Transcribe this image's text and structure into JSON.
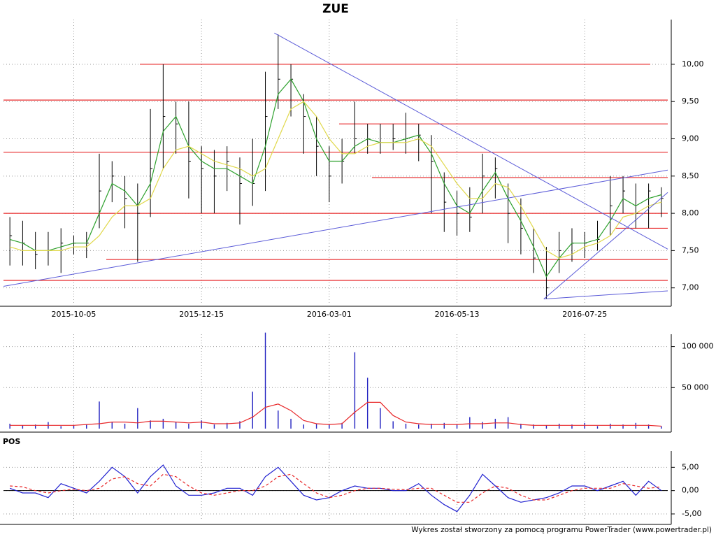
{
  "chart_data": [
    {
      "type": "ohlc",
      "title": "ZUE",
      "categories": [
        null,
        null,
        null,
        null,
        null,
        "2015-10-05",
        null,
        null,
        null,
        null,
        null,
        null,
        null,
        null,
        null,
        "2015-12-15",
        null,
        null,
        null,
        null,
        null,
        null,
        null,
        null,
        null,
        "2016-03-01",
        null,
        null,
        null,
        null,
        null,
        null,
        null,
        null,
        null,
        "2016-05-13",
        null,
        null,
        null,
        null,
        null,
        null,
        null,
        null,
        null,
        "2016-07-25",
        null,
        null,
        null,
        null,
        null,
        null
      ],
      "high": [
        7.95,
        7.9,
        7.75,
        7.75,
        7.8,
        7.7,
        7.75,
        8.8,
        8.7,
        8.5,
        8.4,
        9.4,
        10.0,
        9.5,
        9.5,
        8.9,
        8.85,
        8.9,
        8.75,
        9.0,
        9.9,
        10.4,
        10.0,
        9.6,
        9.3,
        8.9,
        9.0,
        9.5,
        9.2,
        9.2,
        9.2,
        9.35,
        9.2,
        9.05,
        8.55,
        8.3,
        8.35,
        8.8,
        8.75,
        8.4,
        8.2,
        7.8,
        7.55,
        7.75,
        7.8,
        7.75,
        7.9,
        8.5,
        8.5,
        8.4,
        8.4,
        8.35
      ],
      "low": [
        7.3,
        7.3,
        7.25,
        7.3,
        7.2,
        7.45,
        7.4,
        7.8,
        8.15,
        7.8,
        7.35,
        7.95,
        8.6,
        8.8,
        8.2,
        8.0,
        8.0,
        8.3,
        7.85,
        8.1,
        8.3,
        9.4,
        9.3,
        8.8,
        8.5,
        8.15,
        8.4,
        8.8,
        8.8,
        8.8,
        8.85,
        8.8,
        8.7,
        8.0,
        7.75,
        7.7,
        7.75,
        8.0,
        8.2,
        7.6,
        7.45,
        7.2,
        6.85,
        7.2,
        7.35,
        7.4,
        7.5,
        7.7,
        8.0,
        7.8,
        7.8,
        7.95
      ],
      "close": [
        7.7,
        7.6,
        7.45,
        7.5,
        7.6,
        7.6,
        7.6,
        8.3,
        8.5,
        8.2,
        8.0,
        8.6,
        9.3,
        9.2,
        8.7,
        8.6,
        8.5,
        8.7,
        8.4,
        8.4,
        9.3,
        9.8,
        9.8,
        9.3,
        8.9,
        8.5,
        8.7,
        9.0,
        9.0,
        8.95,
        9.0,
        9.0,
        9.05,
        8.7,
        8.15,
        8.0,
        7.95,
        8.5,
        8.6,
        8.0,
        7.8,
        7.4,
        7.0,
        7.5,
        7.6,
        7.6,
        7.65,
        8.1,
        8.3,
        8.0,
        8.3,
        8.2
      ],
      "color": "#000000",
      "lines": [
        {
          "color": "#2ca02c",
          "values": [
            7.65,
            7.6,
            7.5,
            7.5,
            7.55,
            7.6,
            7.6,
            8.0,
            8.4,
            8.3,
            8.1,
            8.4,
            9.1,
            9.3,
            8.9,
            8.7,
            8.6,
            8.6,
            8.5,
            8.4,
            8.9,
            9.6,
            9.8,
            9.5,
            9.0,
            8.7,
            8.7,
            8.9,
            9.0,
            8.95,
            8.95,
            9.0,
            9.05,
            8.8,
            8.4,
            8.1,
            8.0,
            8.3,
            8.55,
            8.2,
            7.9,
            7.55,
            7.15,
            7.4,
            7.6,
            7.6,
            7.65,
            7.9,
            8.2,
            8.1,
            8.2,
            8.25
          ]
        },
        {
          "color": "#e0d84a",
          "values": [
            7.55,
            7.5,
            7.5,
            7.5,
            7.5,
            7.55,
            7.55,
            7.7,
            7.95,
            8.1,
            8.1,
            8.2,
            8.6,
            8.85,
            8.9,
            8.8,
            8.7,
            8.65,
            8.6,
            8.5,
            8.6,
            9.0,
            9.4,
            9.5,
            9.3,
            9.0,
            8.8,
            8.8,
            8.9,
            8.95,
            8.95,
            8.95,
            9.0,
            8.9,
            8.65,
            8.4,
            8.2,
            8.2,
            8.4,
            8.35,
            8.1,
            7.8,
            7.5,
            7.4,
            7.45,
            7.55,
            7.6,
            7.7,
            7.95,
            8.0,
            8.1,
            8.15
          ]
        }
      ],
      "hlines": {
        "color": "#e8282a",
        "values": [
          10.0,
          9.52,
          9.2,
          8.82,
          8.48,
          8.0,
          7.8,
          7.38,
          7.1
        ]
      },
      "trendlines": {
        "color": "#5b5bd8",
        "lines": [
          {
            "x": [
              20.7,
              51.5
            ],
            "y": [
              10.42,
              7.52
            ]
          },
          {
            "x": [
              -0.5,
              51.5
            ],
            "y": [
              7.02,
              8.58
            ]
          },
          {
            "x": [
              41.8,
              51.5
            ],
            "y": [
              6.85,
              8.28
            ]
          },
          {
            "x": [
              41.8,
              51.5
            ],
            "y": [
              6.85,
              6.96
            ]
          }
        ]
      },
      "ylim": [
        6.8,
        10.6
      ],
      "yticks": [
        {
          "value": 7,
          "label": "7,00"
        },
        {
          "value": 7.5,
          "label": "7,50"
        },
        {
          "value": 8,
          "label": "8,00"
        },
        {
          "value": 8.5,
          "label": "8,50"
        },
        {
          "value": 9,
          "label": "9,00"
        },
        {
          "value": 9.5,
          "label": "9,50"
        },
        {
          "value": 10,
          "label": "10,00"
        }
      ],
      "grid": true
    },
    {
      "type": "bar",
      "values": [
        6000,
        4000,
        5000,
        8000,
        3000,
        4000,
        5000,
        33000,
        8000,
        6000,
        25000,
        10000,
        12000,
        8000,
        6000,
        10000,
        5000,
        7000,
        9000,
        45000,
        117000,
        22000,
        12000,
        5000,
        6000,
        5000,
        7000,
        93000,
        62000,
        25000,
        9000,
        6000,
        5000,
        6000,
        7000,
        5000,
        14000,
        8000,
        12000,
        14000,
        6000,
        5000,
        4000,
        6000,
        5000,
        7000,
        3000,
        6000,
        5000,
        7000,
        5000,
        3000
      ],
      "color": "#2020c0",
      "lines": [
        {
          "color": "#e8282a",
          "values": [
            4000,
            4000,
            4000,
            4000,
            4000,
            4000,
            5000,
            6000,
            8000,
            8000,
            7000,
            9000,
            9000,
            8000,
            7000,
            8000,
            6000,
            6000,
            7000,
            14000,
            26000,
            30000,
            22000,
            10000,
            6000,
            5000,
            6000,
            20000,
            32000,
            32000,
            16000,
            8000,
            6000,
            5000,
            5000,
            5000,
            6000,
            6000,
            7000,
            7000,
            5000,
            4000,
            4000,
            4000,
            4000,
            4000,
            4000,
            4000,
            4000,
            4000,
            4000,
            3000
          ]
        }
      ],
      "ylim": [
        0,
        115000
      ],
      "yticks": [
        {
          "value": 50000,
          "label": "50 000"
        },
        {
          "value": 100000,
          "label": "100 000"
        }
      ],
      "grid": true
    },
    {
      "type": "line",
      "title": "POS",
      "lines": [
        {
          "color": "#2020d0",
          "values": [
            0.5,
            -0.5,
            -0.5,
            -1.5,
            1.5,
            0.5,
            -0.5,
            2,
            5,
            3,
            -0.5,
            3,
            5.5,
            1,
            -1,
            -1,
            -0.5,
            0.5,
            0.5,
            -1,
            3,
            5,
            2,
            -1,
            -2,
            -1.5,
            0,
            1,
            0.5,
            0.5,
            0,
            0,
            1.5,
            -1,
            -3,
            -4.5,
            -1,
            3.5,
            1,
            -1.5,
            -2.5,
            -2,
            -1.5,
            -0.5,
            1,
            1,
            0,
            1,
            2,
            -1,
            2,
            0
          ]
        },
        {
          "color": "#e8282a",
          "dashed": true,
          "values": [
            1,
            0.8,
            0,
            -0.5,
            0,
            0.3,
            0,
            0.5,
            2.5,
            3,
            1.5,
            1,
            3.5,
            3,
            1,
            -0.5,
            -1,
            -0.5,
            0,
            0,
            1,
            3,
            3.5,
            1.5,
            -0.5,
            -1.5,
            -1,
            0,
            0.5,
            0.5,
            0.3,
            0.2,
            0.5,
            0.5,
            -1,
            -2.5,
            -2.5,
            -0.5,
            1,
            0.5,
            -1,
            -2,
            -2,
            -1,
            0,
            0.5,
            0.5,
            0.5,
            1.5,
            1,
            0.5,
            0.8
          ]
        }
      ],
      "ylim": [
        -6.5,
        8.5
      ],
      "yticks": [
        {
          "value": -5,
          "label": "-5,00"
        },
        {
          "value": 0,
          "label": "0,00"
        },
        {
          "value": 5,
          "label": "5,00"
        }
      ],
      "grid": true
    }
  ],
  "footer": "Wykres został stworzony za pomocą programu PowerTrader (www.powertrader.pl)"
}
